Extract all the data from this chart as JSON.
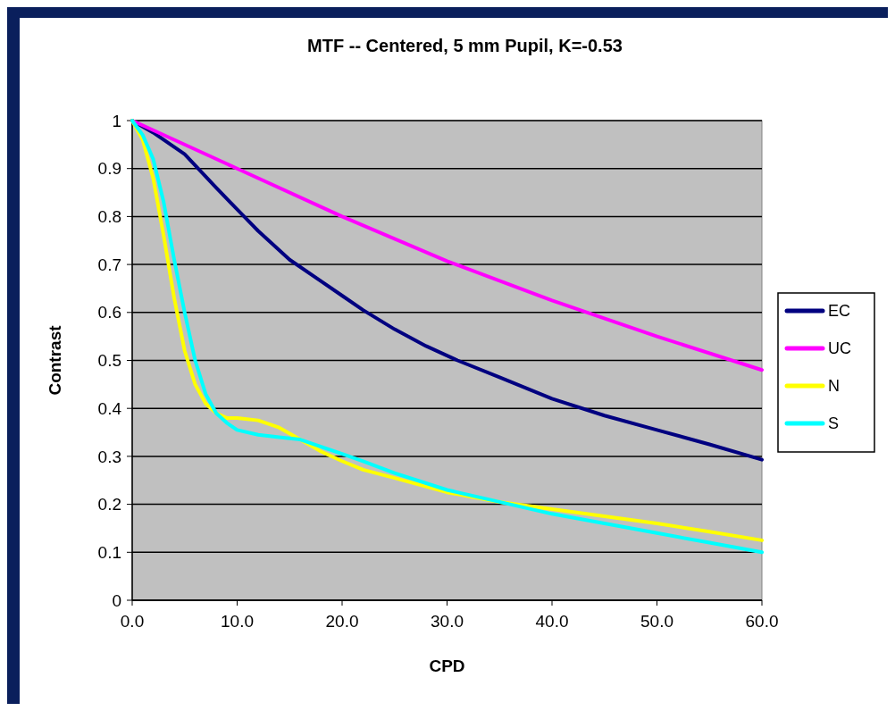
{
  "chart_data": {
    "type": "line",
    "title": "MTF -- Centered, 5 mm Pupil, K=-0.53",
    "xlabel": "CPD",
    "ylabel": "Contrast",
    "xlim": [
      0,
      60
    ],
    "xticks": [
      {
        "value": 0,
        "label": "0.0"
      },
      {
        "value": 10,
        "label": "10.0"
      },
      {
        "value": 20,
        "label": "20.0"
      },
      {
        "value": 30,
        "label": "30.0"
      },
      {
        "value": 40,
        "label": "40.0"
      },
      {
        "value": 50,
        "label": "50.0"
      },
      {
        "value": 60,
        "label": "60.0"
      }
    ],
    "ylim": [
      0,
      1
    ],
    "yticks": [
      0,
      0.1,
      0.2,
      0.3,
      0.4,
      0.5,
      0.6,
      0.7,
      0.8,
      0.9,
      1
    ],
    "grid": "y",
    "legend": "right",
    "marker": "none",
    "line_style": "solid",
    "series": [
      {
        "name": "EC",
        "color": "#000080",
        "x": [
          0,
          2,
          5,
          8,
          10,
          12,
          15,
          18,
          20,
          22,
          25,
          28,
          31,
          35,
          40,
          45,
          50,
          55,
          60
        ],
        "values": [
          1,
          0.975,
          0.93,
          0.86,
          0.815,
          0.77,
          0.71,
          0.665,
          0.635,
          0.605,
          0.565,
          0.53,
          0.5,
          0.465,
          0.42,
          0.385,
          0.355,
          0.325,
          0.293
        ]
      },
      {
        "name": "UC",
        "color": "#ff00ff",
        "x": [
          0,
          10,
          20,
          30,
          40,
          50,
          60
        ],
        "values": [
          1,
          0.9,
          0.8,
          0.707,
          0.625,
          0.55,
          0.48
        ]
      },
      {
        "name": "N",
        "color": "#ffff00",
        "x": [
          0,
          1,
          2,
          3,
          4,
          5,
          6,
          7,
          8,
          9,
          10,
          12,
          14,
          16,
          18,
          20,
          22,
          25,
          30,
          35,
          40,
          45,
          50,
          55,
          60
        ],
        "values": [
          1,
          0.96,
          0.88,
          0.76,
          0.63,
          0.52,
          0.45,
          0.41,
          0.39,
          0.38,
          0.38,
          0.375,
          0.36,
          0.335,
          0.31,
          0.29,
          0.272,
          0.255,
          0.225,
          0.205,
          0.19,
          0.175,
          0.16,
          0.143,
          0.125
        ]
      },
      {
        "name": "S",
        "color": "#00ffff",
        "x": [
          0,
          1,
          2,
          3,
          4,
          5,
          6,
          7,
          8,
          9,
          10,
          12,
          14,
          16,
          18,
          20,
          22,
          25,
          30,
          35,
          40,
          45,
          50,
          55,
          60
        ],
        "values": [
          1,
          0.97,
          0.92,
          0.83,
          0.71,
          0.6,
          0.5,
          0.43,
          0.39,
          0.37,
          0.355,
          0.345,
          0.34,
          0.335,
          0.32,
          0.305,
          0.29,
          0.265,
          0.23,
          0.205,
          0.18,
          0.16,
          0.14,
          0.12,
          0.1
        ]
      }
    ]
  }
}
